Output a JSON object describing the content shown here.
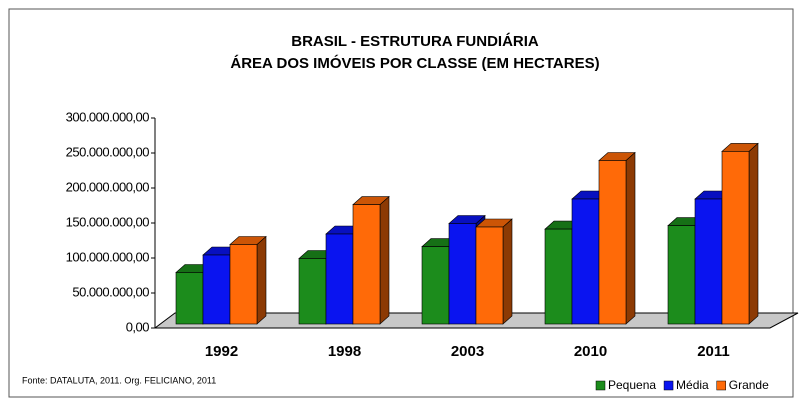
{
  "chart_data": {
    "type": "bar3d",
    "title": "BRASIL - ESTRUTURA FUNDIÁRIA",
    "subtitle": "ÁREA DOS IMÓVEIS POR CLASSE (EM HECTARES)",
    "source": "Fonte: DATALUTA, 2011. Org. FELICIANO, 2011",
    "categories": [
      "1992",
      "1998",
      "2003",
      "2010",
      "2011"
    ],
    "series": [
      {
        "name": "Pequena",
        "color": "#1c8c1c",
        "values": [
          85000000,
          105000000,
          122000000,
          147000000,
          152000000
        ]
      },
      {
        "name": "Média",
        "color": "#0a14f0",
        "values": [
          110000000,
          140000000,
          155000000,
          190000000,
          190000000
        ]
      },
      {
        "name": "Grande",
        "color": "#ff6a08",
        "values": [
          125000000,
          182000000,
          150000000,
          245000000,
          258000000
        ]
      }
    ],
    "ylim": [
      0,
      300000000
    ],
    "yticks": [
      {
        "value": 0,
        "label": "0,00"
      },
      {
        "value": 50000000,
        "label": "50.000.000,00"
      },
      {
        "value": 100000000,
        "label": "100.000.000,00"
      },
      {
        "value": 150000000,
        "label": "150.000.000,00"
      },
      {
        "value": 200000000,
        "label": "200.000.000,00"
      },
      {
        "value": 250000000,
        "label": "250.000.000,00"
      },
      {
        "value": 300000000,
        "label": "300.000.000,00"
      }
    ],
    "legend": "bottom-right"
  }
}
